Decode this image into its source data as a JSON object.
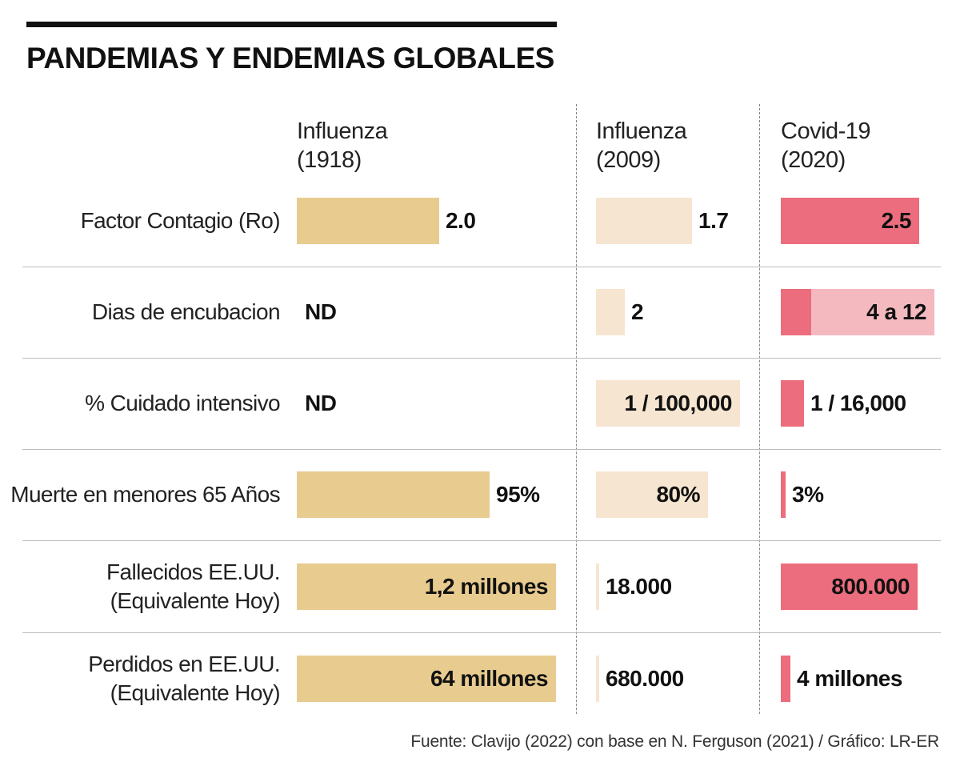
{
  "title": "PANDEMIAS Y ENDEMIAS GLOBALES",
  "source": "Fuente:  Clavijo (2022) con base en N. Ferguson (2021) / Gráfico: LR-ER",
  "colors": {
    "influenza_1918": "#e8cb8e",
    "influenza_2009": "#f6e5d0",
    "covid_2020": "#ec6d7d",
    "covid_2020_range": "#f3b9bf"
  },
  "chart_data": {
    "type": "table",
    "title": "PANDEMIAS Y ENDEMIAS GLOBALES",
    "columns": [
      {
        "key": "influenza_1918",
        "line1": "Influenza",
        "line2": "(1918)"
      },
      {
        "key": "influenza_2009",
        "line1": "Influenza",
        "line2": "(2009)"
      },
      {
        "key": "covid_2020",
        "line1": "Covid-19",
        "line2": "(2020)"
      }
    ],
    "rows": [
      {
        "key": "contagio",
        "label": [
          "Factor Contagio (Ro)"
        ],
        "cells": [
          {
            "label": "2.0",
            "value": 2.0,
            "ratio": 0.55,
            "pos": "out"
          },
          {
            "label": "1.7",
            "value": 1.7,
            "ratio": 0.6,
            "pos": "out"
          },
          {
            "label": "2.5",
            "value": 2.5,
            "ratio": 0.9,
            "pos": "in"
          }
        ]
      },
      {
        "key": "encubacion",
        "label": [
          "Dias de encubacion"
        ],
        "cells": [
          {
            "label": "ND",
            "value": null,
            "ratio": 0,
            "pos": "none"
          },
          {
            "label": "2",
            "value": 2,
            "ratio": 0.18,
            "pos": "out"
          },
          {
            "label": "4 a 12",
            "value": 12,
            "ratio": 1.0,
            "range_ratio": 0.2,
            "pos": "in"
          }
        ]
      },
      {
        "key": "cuidado",
        "label": [
          "% Cuidado intensivo"
        ],
        "cells": [
          {
            "label": "ND",
            "value": null,
            "ratio": 0,
            "pos": "none"
          },
          {
            "label": "1 / 100,000",
            "value": 1e-05,
            "ratio": 0.9,
            "pos": "in"
          },
          {
            "label": "1 / 16,000",
            "value": 6.25e-05,
            "ratio": 0.15,
            "pos": "out"
          }
        ]
      },
      {
        "key": "muerte65",
        "label": [
          "Muerte en menores 65 Años"
        ],
        "cells": [
          {
            "label": "95%",
            "value": 95,
            "ratio": 0.745,
            "pos": "out"
          },
          {
            "label": "80%",
            "value": 80,
            "ratio": 0.7,
            "pos": "in"
          },
          {
            "label": "3%",
            "value": 3,
            "ratio": 0.03,
            "pos": "out"
          }
        ]
      },
      {
        "key": "fallecidos",
        "label": [
          "Fallecidos EE.UU.",
          "(Equivalente Hoy)"
        ],
        "cells": [
          {
            "label": "1,2 millones",
            "value": 1200000,
            "ratio": 1.0,
            "pos": "in"
          },
          {
            "label": "18.000",
            "value": 18000,
            "ratio": 0.015,
            "pos": "out"
          },
          {
            "label": "800.000",
            "value": 800000,
            "ratio": 0.89,
            "pos": "in"
          }
        ]
      },
      {
        "key": "perdidos",
        "label": [
          "Perdidos en EE.UU.",
          "(Equivalente Hoy)"
        ],
        "cells": [
          {
            "label": "64 millones",
            "value": 64000000,
            "ratio": 1.0,
            "pos": "in"
          },
          {
            "label": "680.000",
            "value": 680000,
            "ratio": 0.011,
            "pos": "out"
          },
          {
            "label": "4 millones",
            "value": 4000000,
            "ratio": 0.06,
            "pos": "out"
          }
        ]
      }
    ]
  }
}
